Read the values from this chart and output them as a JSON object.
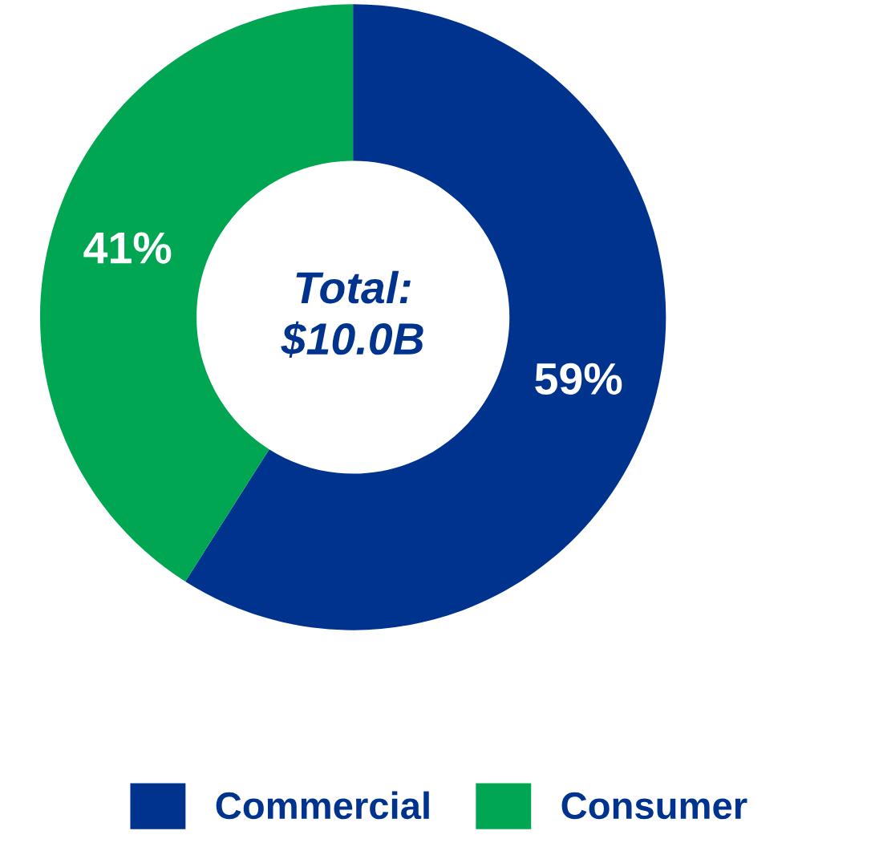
{
  "chart_data": {
    "type": "donut",
    "categories": [
      "Commercial",
      "Consumer"
    ],
    "values": [
      59,
      41
    ],
    "colors": [
      "#00338d",
      "#00a651"
    ],
    "value_labels": [
      "59%",
      "41%"
    ],
    "annotations": [
      "Total:\n$10.0B"
    ],
    "legend": "bottom"
  }
}
